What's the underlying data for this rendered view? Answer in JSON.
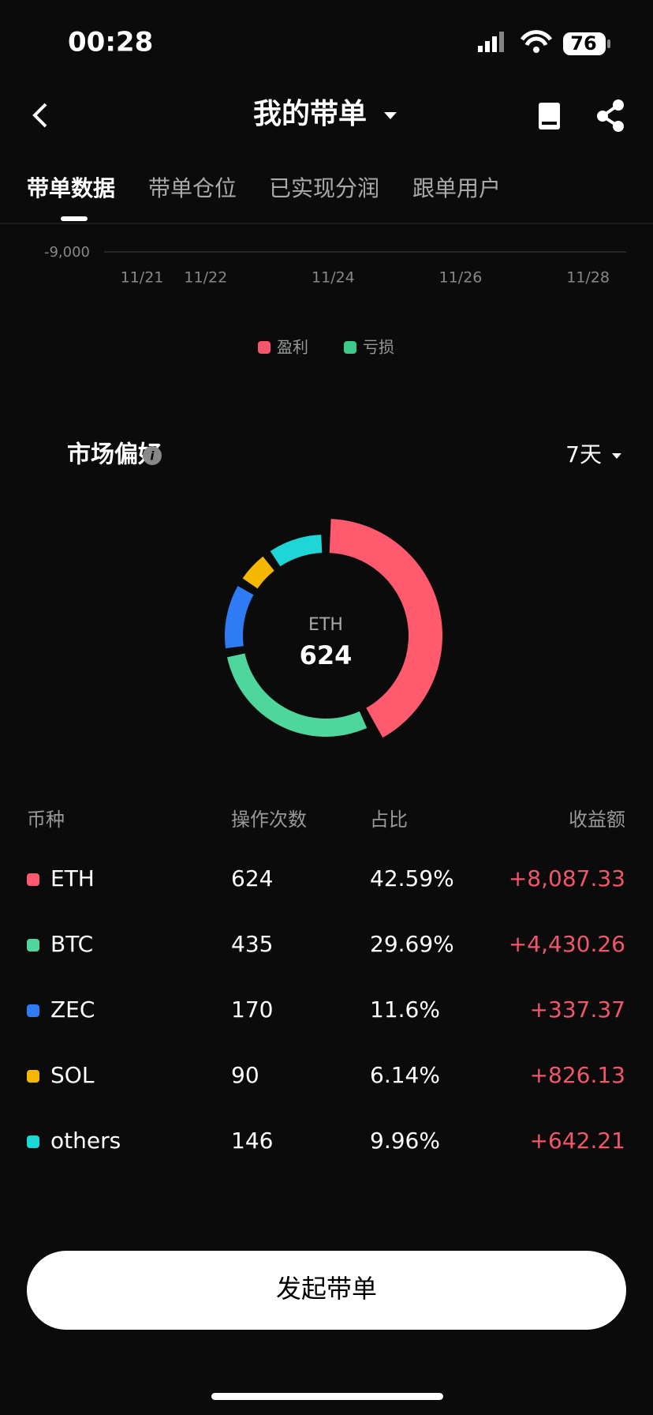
{
  "status_bar": {
    "time": "00:28",
    "battery": "76"
  },
  "header": {
    "title": "我的带单"
  },
  "tabs": [
    "带单数据",
    "带单仓位",
    "已实现分润",
    "跟单用户"
  ],
  "trend_chart": {
    "yticks": [
      {
        "value": -9000,
        "label": "-9,000"
      }
    ],
    "x_labels": [
      "11/21",
      "11/22",
      "11/24",
      "11/26",
      "11/28"
    ],
    "legend": [
      {
        "name": "盈利",
        "color": "#f5566c"
      },
      {
        "name": "亏损",
        "color": "#3ec98a"
      }
    ]
  },
  "market": {
    "title": "市场偏好",
    "period": "7天",
    "table": {
      "columns": [
        "币种",
        "操作次数",
        "占比",
        "收益额"
      ],
      "rows": [
        {
          "name": "ETH",
          "color": "#ff5a6e",
          "count": 624,
          "share": {
            "value": 42.59,
            "label": "42.59%"
          },
          "profit": {
            "value": 8087.33,
            "label": "+8,087.33"
          }
        },
        {
          "name": "BTC",
          "color": "#4fd69c",
          "count": 435,
          "share": {
            "value": 29.69,
            "label": "29.69%"
          },
          "profit": {
            "value": 4430.26,
            "label": "+4,430.26"
          }
        },
        {
          "name": "ZEC",
          "color": "#2f7bf5",
          "count": 170,
          "share": {
            "value": 11.6,
            "label": "11.6%"
          },
          "profit": {
            "value": 337.37,
            "label": "+337.37"
          }
        },
        {
          "name": "SOL",
          "color": "#f5b800",
          "count": 90,
          "share": {
            "value": 6.14,
            "label": "6.14%"
          },
          "profit": {
            "value": 826.13,
            "label": "+826.13"
          }
        },
        {
          "name": "others",
          "color": "#1fd6d6",
          "count": 146,
          "share": {
            "value": 9.96,
            "label": "9.96%"
          },
          "profit": {
            "value": 642.21,
            "label": "+642.21"
          }
        }
      ]
    }
  },
  "button": {
    "label": "发起带单"
  }
}
